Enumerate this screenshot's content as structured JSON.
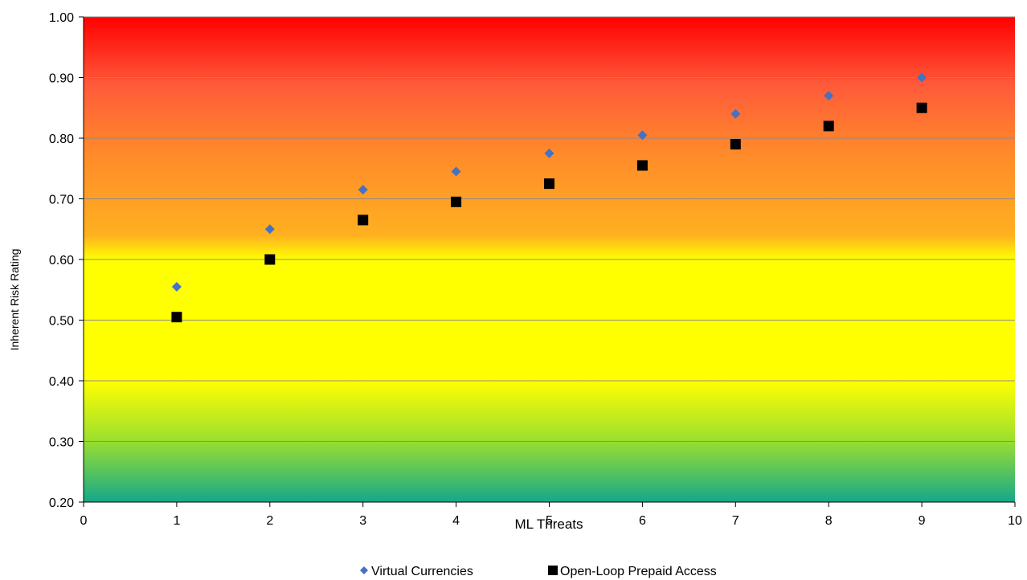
{
  "chart_data": {
    "type": "scatter",
    "xlabel": "ML Threats",
    "ylabel": "Inherent Risk Rating",
    "xlim": [
      0,
      10
    ],
    "ylim": [
      0.2,
      1.0
    ],
    "x_ticks": [
      "0",
      "1",
      "2",
      "3",
      "4",
      "5",
      "6",
      "7",
      "8",
      "9",
      "10"
    ],
    "y_ticks": [
      "0.20",
      "0.30",
      "0.40",
      "0.50",
      "0.60",
      "0.70",
      "0.80",
      "0.90",
      "1.00"
    ],
    "grid": "horizontal",
    "legend_position": "bottom",
    "background_gradient": [
      "#ff0000",
      "#ff7a33",
      "#ffa020",
      "#ffff00",
      "#ffff00",
      "#9ee02e",
      "#14a88a"
    ],
    "series": [
      {
        "name": "Virtual Currencies",
        "marker": "diamond",
        "color": "#4472c4",
        "x": [
          1,
          2,
          3,
          4,
          5,
          6,
          7,
          8,
          9
        ],
        "y": [
          0.555,
          0.65,
          0.715,
          0.745,
          0.775,
          0.805,
          0.84,
          0.87,
          0.9
        ]
      },
      {
        "name": "Open-Loop Prepaid Access",
        "marker": "square",
        "color": "#000000",
        "x": [
          1,
          2,
          3,
          4,
          5,
          6,
          7,
          8,
          9
        ],
        "y": [
          0.505,
          0.6,
          0.665,
          0.695,
          0.725,
          0.755,
          0.79,
          0.82,
          0.85
        ]
      }
    ]
  }
}
